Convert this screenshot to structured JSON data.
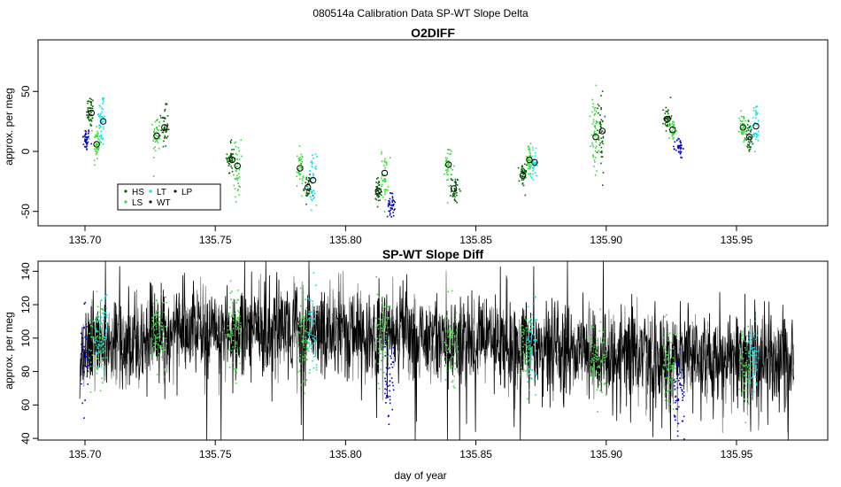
{
  "figure": {
    "suptitle": "080514a   Calibration Data SP-WT Slope Delta",
    "xlabel": "day of year"
  },
  "chart_data": [
    {
      "type": "scatter",
      "title": "O2DIFF",
      "ylabel": "approx. per meg",
      "xlim": [
        135.682,
        135.985
      ],
      "ylim": [
        -62,
        93
      ],
      "xticks": [
        "135.70",
        "135.75",
        "135.80",
        "135.85",
        "135.90",
        "135.95"
      ],
      "xtick_values": [
        135.7,
        135.75,
        135.8,
        135.85,
        135.9,
        135.95
      ],
      "yticks": [
        "-50",
        "0",
        "50"
      ],
      "ytick_values": [
        -50,
        0,
        50
      ],
      "legend": {
        "position": "bottom-left",
        "entries": [
          {
            "name": "HS",
            "color": "#006400"
          },
          {
            "name": "LS",
            "color": "#33dd33"
          },
          {
            "name": "LT",
            "color": "#00e5ee"
          },
          {
            "name": "WT",
            "color": "#1a1a1a"
          },
          {
            "name": "LP",
            "color": "#003300"
          }
        ]
      },
      "colors": {
        "dark_green": "#006400",
        "green": "#33dd33",
        "cyan": "#00e5ee",
        "blue": "#0000cc",
        "black": "#1a1a1a"
      },
      "clusters": [
        {
          "color": "blue",
          "x": 135.7005,
          "y": 10,
          "spread": 9,
          "n": 40
        },
        {
          "color": "dark_green",
          "x": 135.702,
          "y": 33,
          "spread": 12,
          "n": 45
        },
        {
          "color": "green",
          "x": 135.7045,
          "y": 6,
          "spread": 18,
          "n": 45
        },
        {
          "color": "cyan",
          "x": 135.7065,
          "y": 27,
          "spread": 22,
          "n": 45
        },
        {
          "color": "green",
          "x": 135.7275,
          "y": 14,
          "spread": 15,
          "n": 45
        },
        {
          "color": "dark_green",
          "x": 135.7305,
          "y": 20,
          "spread": 15,
          "n": 45
        },
        {
          "color": "dark_green",
          "x": 135.756,
          "y": -6,
          "spread": 14,
          "n": 40
        },
        {
          "color": "green",
          "x": 135.7585,
          "y": -14,
          "spread": 22,
          "n": 45
        },
        {
          "color": "green",
          "x": 135.7825,
          "y": -15,
          "spread": 14,
          "n": 40
        },
        {
          "color": "dark_green",
          "x": 135.7855,
          "y": -30,
          "spread": 11,
          "n": 40
        },
        {
          "color": "cyan",
          "x": 135.7875,
          "y": -24,
          "spread": 18,
          "n": 40
        },
        {
          "color": "dark_green",
          "x": 135.8125,
          "y": -35,
          "spread": 12,
          "n": 40
        },
        {
          "color": "green",
          "x": 135.815,
          "y": -20,
          "spread": 20,
          "n": 40
        },
        {
          "color": "blue",
          "x": 135.8175,
          "y": -45,
          "spread": 9,
          "n": 40
        },
        {
          "color": "green",
          "x": 135.8395,
          "y": -11,
          "spread": 15,
          "n": 40
        },
        {
          "color": "dark_green",
          "x": 135.842,
          "y": -32,
          "spread": 10,
          "n": 40
        },
        {
          "color": "dark_green",
          "x": 135.868,
          "y": -20,
          "spread": 10,
          "n": 40
        },
        {
          "color": "green",
          "x": 135.8705,
          "y": -8,
          "spread": 12,
          "n": 40
        },
        {
          "color": "cyan",
          "x": 135.8725,
          "y": -10,
          "spread": 10,
          "n": 35
        },
        {
          "color": "green",
          "x": 135.8955,
          "y": 12,
          "spread": 32,
          "n": 55
        },
        {
          "color": "dark_green",
          "x": 135.898,
          "y": 18,
          "spread": 32,
          "n": 45
        },
        {
          "color": "dark_green",
          "x": 135.9235,
          "y": 28,
          "spread": 9,
          "n": 40
        },
        {
          "color": "green",
          "x": 135.9255,
          "y": 18,
          "spread": 8,
          "n": 35
        },
        {
          "color": "blue",
          "x": 135.928,
          "y": 3,
          "spread": 8,
          "n": 40
        },
        {
          "color": "green",
          "x": 135.9525,
          "y": 20,
          "spread": 12,
          "n": 40
        },
        {
          "color": "dark_green",
          "x": 135.955,
          "y": 12,
          "spread": 12,
          "n": 40
        },
        {
          "color": "cyan",
          "x": 135.9575,
          "y": 21,
          "spread": 18,
          "n": 40
        }
      ],
      "means": [
        {
          "x": 135.7025,
          "y": 32
        },
        {
          "x": 135.7045,
          "y": 6
        },
        {
          "x": 135.707,
          "y": 25
        },
        {
          "x": 135.7275,
          "y": 13
        },
        {
          "x": 135.7305,
          "y": 20
        },
        {
          "x": 135.7565,
          "y": -7
        },
        {
          "x": 135.7585,
          "y": -12
        },
        {
          "x": 135.7825,
          "y": -14
        },
        {
          "x": 135.7855,
          "y": -30
        },
        {
          "x": 135.7875,
          "y": -24
        },
        {
          "x": 135.8125,
          "y": -33
        },
        {
          "x": 135.815,
          "y": -18
        },
        {
          "x": 135.8395,
          "y": -11
        },
        {
          "x": 135.8415,
          "y": -31
        },
        {
          "x": 135.868,
          "y": -20
        },
        {
          "x": 135.8705,
          "y": -7
        },
        {
          "x": 135.8725,
          "y": -9
        },
        {
          "x": 135.896,
          "y": 12
        },
        {
          "x": 135.8985,
          "y": 17
        },
        {
          "x": 135.9235,
          "y": 27
        },
        {
          "x": 135.9255,
          "y": 18
        },
        {
          "x": 135.9525,
          "y": 20
        },
        {
          "x": 135.955,
          "y": 12
        },
        {
          "x": 135.9575,
          "y": 21
        }
      ]
    },
    {
      "type": "line",
      "title": "SP-WT Slope Diff",
      "ylabel": "approx. per meg",
      "xlim": [
        135.682,
        135.985
      ],
      "ylim": [
        39,
        146
      ],
      "xticks": [
        "135.70",
        "135.75",
        "135.80",
        "135.85",
        "135.90",
        "135.95"
      ],
      "xtick_values": [
        135.7,
        135.75,
        135.8,
        135.85,
        135.9,
        135.95
      ],
      "yticks": [
        "40",
        "60",
        "80",
        "100",
        "120",
        "140"
      ],
      "ytick_values": [
        40,
        60,
        80,
        100,
        120,
        140
      ],
      "series_x_range": [
        135.698,
        135.972
      ],
      "trend": [
        {
          "x": 135.7,
          "y": 96
        },
        {
          "x": 135.75,
          "y": 104
        },
        {
          "x": 135.8,
          "y": 104
        },
        {
          "x": 135.85,
          "y": 98
        },
        {
          "x": 135.9,
          "y": 90
        },
        {
          "x": 135.95,
          "y": 86
        },
        {
          "x": 135.972,
          "y": 88
        }
      ],
      "noise_sd": 14,
      "points_per_unit": 6400,
      "point_segments": [
        {
          "x0": 135.6985,
          "x1": 135.7015,
          "color": "blue",
          "y": 90
        },
        {
          "x0": 135.7015,
          "x1": 135.7075,
          "color": "green",
          "y": 98
        },
        {
          "x0": 135.704,
          "x1": 135.7085,
          "color": "cyan",
          "y": 102
        },
        {
          "x0": 135.7255,
          "x1": 135.7315,
          "color": "green",
          "y": 104
        },
        {
          "x0": 135.7545,
          "x1": 135.76,
          "color": "green",
          "y": 105
        },
        {
          "x0": 135.7815,
          "x1": 135.7865,
          "color": "green",
          "y": 100
        },
        {
          "x0": 135.7855,
          "x1": 135.789,
          "color": "cyan",
          "y": 104
        },
        {
          "x0": 135.8115,
          "x1": 135.8165,
          "color": "green",
          "y": 100
        },
        {
          "x0": 135.815,
          "x1": 135.8185,
          "color": "blue",
          "y": 78
        },
        {
          "x0": 135.838,
          "x1": 135.843,
          "color": "green",
          "y": 98
        },
        {
          "x0": 135.867,
          "x1": 135.8715,
          "color": "green",
          "y": 95
        },
        {
          "x0": 135.8695,
          "x1": 135.8735,
          "color": "cyan",
          "y": 96
        },
        {
          "x0": 135.894,
          "x1": 135.9,
          "color": "green",
          "y": 88
        },
        {
          "x0": 135.922,
          "x1": 135.9265,
          "color": "green",
          "y": 82
        },
        {
          "x0": 135.926,
          "x1": 135.93,
          "color": "blue",
          "y": 68
        },
        {
          "x0": 135.951,
          "x1": 135.9555,
          "color": "green",
          "y": 84
        },
        {
          "x0": 135.9545,
          "x1": 135.9585,
          "color": "cyan",
          "y": 88
        }
      ]
    }
  ]
}
